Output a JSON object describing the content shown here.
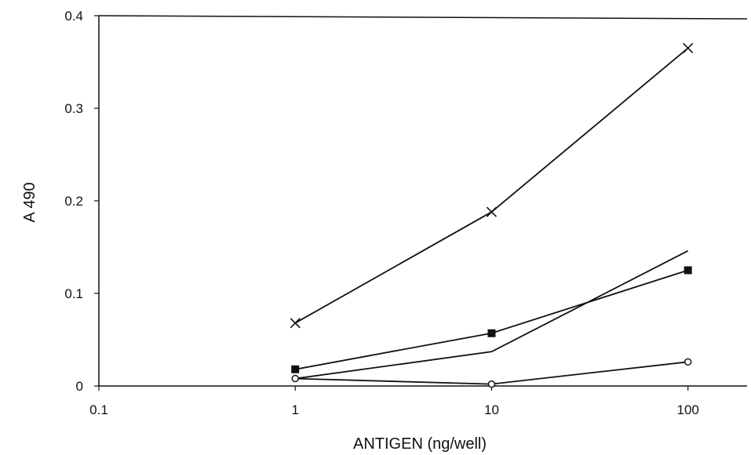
{
  "chart_data": {
    "type": "line",
    "xlabel": "ANTIGEN (ng/well)",
    "ylabel": "A 490",
    "x_scale": "log",
    "xlim": [
      0.1,
      200
    ],
    "ylim": [
      0,
      0.4
    ],
    "x_ticks": [
      0.1,
      1,
      10,
      100
    ],
    "x_tick_labels": [
      "0.1",
      "1",
      "10",
      "100"
    ],
    "y_ticks": [
      0,
      0.1,
      0.2,
      0.3,
      0.4
    ],
    "y_tick_labels": [
      "0",
      "0.1",
      "0.2",
      "0.3",
      "0.4"
    ],
    "grid": false,
    "legend": "none",
    "line_color": "#111111",
    "series": [
      {
        "marker": "x-icon",
        "x": [
          1,
          10,
          100
        ],
        "y": [
          0.068,
          0.188,
          0.365
        ]
      },
      {
        "marker": "filled-square-icon",
        "x": [
          1,
          10,
          100
        ],
        "y": [
          0.018,
          0.057,
          0.125
        ]
      },
      {
        "marker": "none",
        "x": [
          1,
          10,
          100
        ],
        "y": [
          0.008,
          0.037,
          0.146
        ]
      },
      {
        "marker": "open-circle-icon",
        "x": [
          1,
          10,
          100
        ],
        "y": [
          0.008,
          0.002,
          0.026
        ]
      }
    ]
  }
}
